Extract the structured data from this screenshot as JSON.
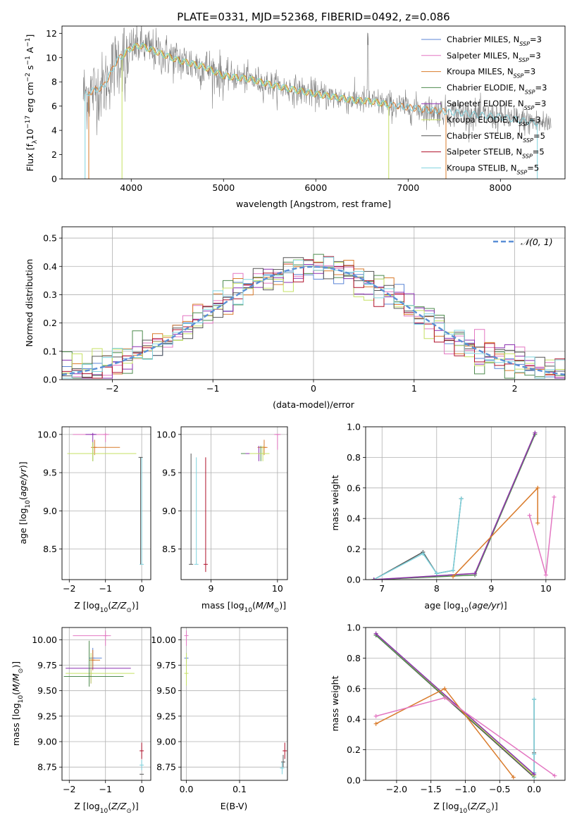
{
  "title": "PLATE=0331, MJD=52368, FIBERID=0492, z=0.086",
  "colors": {
    "chabrier_miles": "#5b85d6",
    "salpeter_miles": "#e377c2",
    "kroupa_miles": "#d97b2b",
    "chabrier_elodie": "#4e8b4e",
    "salpeter_elodie": "#8b2fb0",
    "kroupa_elodie": "#c5e063",
    "chabrier_stelib": "#555555",
    "salpeter_stelib": "#b0102a",
    "kroupa_stelib": "#7fd3de",
    "data": "#808080",
    "normal_curve": "#5b8fd6",
    "grid": "#b0b0b0"
  },
  "chart_data": [
    {
      "id": "spectrum",
      "type": "line",
      "title": "PLATE=0331, MJD=52368, FIBERID=0492, z=0.086",
      "xlabel": "wavelength [Angstrom, rest frame]",
      "ylabel": "Flux [f_λ 10^-17 erg cm^-2 s^-1 A^-1]",
      "xlim": [
        3250,
        8700
      ],
      "ylim": [
        0,
        12.6
      ],
      "xticks": [
        4000,
        5000,
        6000,
        7000,
        8000
      ],
      "yticks": [
        0,
        2,
        4,
        6,
        8,
        10,
        12
      ],
      "legend_position": "top-right",
      "legend": [
        {
          "label": "Chabrier MILES, N_SSP=3",
          "color": "chabrier_miles"
        },
        {
          "label": "Salpeter MILES, N_SSP=3",
          "color": "salpeter_miles"
        },
        {
          "label": "Kroupa MILES, N_SSP=3",
          "color": "kroupa_miles"
        },
        {
          "label": "Chabrier ELODIE, N_SSP=3",
          "color": "chabrier_elodie"
        },
        {
          "label": "Salpeter ELODIE, N_SSP=3",
          "color": "salpeter_elodie"
        },
        {
          "label": "Kroupa ELODIE, N_SSP=3",
          "color": "kroupa_elodie"
        },
        {
          "label": "Chabrier STELIB, N_SSP=5",
          "color": "chabrier_stelib"
        },
        {
          "label": "Salpeter STELIB, N_SSP=5",
          "color": "salpeter_stelib"
        },
        {
          "label": "Kroupa STELIB, N_SSP=5",
          "color": "kroupa_stelib"
        }
      ],
      "continuum": {
        "x": [
          3500,
          3700,
          3850,
          4000,
          4100,
          4300,
          4500,
          4800,
          5000,
          5300,
          5600,
          6000,
          6400,
          6600,
          6800,
          7200,
          7600,
          8000,
          8400
        ],
        "y": [
          7.0,
          7.6,
          9.8,
          10.8,
          11.0,
          10.4,
          9.8,
          9.2,
          8.5,
          8.2,
          7.6,
          7.0,
          6.5,
          6.4,
          6.1,
          5.7,
          5.4,
          5.1,
          4.6
        ]
      }
    },
    {
      "id": "residuals",
      "type": "histogram",
      "xlabel": "(data-model)/error",
      "ylabel": "Normed distribution",
      "xlim": [
        -2.5,
        2.5
      ],
      "ylim": [
        0,
        0.54
      ],
      "xticks": [
        -2,
        -1,
        0,
        1,
        2
      ],
      "yticks": [
        0.0,
        0.1,
        0.2,
        0.3,
        0.4,
        0.5
      ],
      "bin_width": 0.1,
      "legend_position": "top-right",
      "curve_label": "𝒩(0, 1)"
    },
    {
      "id": "age_vs_Z",
      "type": "scatter",
      "xlabel": "Z [log10(Z/Z⊙)]",
      "ylabel": "age  [log10(age/yr)]",
      "xlim": [
        -2.2,
        0.25
      ],
      "ylim": [
        8.1,
        10.1
      ],
      "xticks": [
        -2,
        -1,
        0
      ],
      "yticks": [
        8.5,
        9.0,
        9.5,
        10.0
      ]
    },
    {
      "id": "age_vs_mass",
      "type": "scatter",
      "xlabel": "mass [log10(M/M⊙)]",
      "ylabel": "",
      "xlim": [
        8.55,
        10.15
      ],
      "ylim": [
        8.1,
        10.1
      ],
      "xticks": [
        9,
        10
      ],
      "yticks": [
        8.5,
        9.0,
        9.5,
        10.0
      ]
    },
    {
      "id": "weight_vs_age",
      "type": "line",
      "xlabel": "age  [log10(age/yr)]",
      "ylabel": "mass weight",
      "xlim": [
        6.7,
        10.35
      ],
      "ylim": [
        0,
        1.0
      ],
      "xticks": [
        7,
        8,
        9,
        10
      ],
      "yticks": [
        0.0,
        0.2,
        0.4,
        0.6,
        0.8,
        1.0
      ],
      "series": [
        {
          "color": "chabrier_stelib",
          "x": [
            6.85,
            7.75,
            8.0,
            8.3,
            8.45
          ],
          "y": [
            0.0,
            0.18,
            0.04,
            0.06,
            0.53
          ]
        },
        {
          "color": "kroupa_stelib",
          "x": [
            6.85,
            7.75,
            8.0,
            8.3,
            8.45
          ],
          "y": [
            0.0,
            0.17,
            0.04,
            0.06,
            0.53
          ]
        },
        {
          "color": "chabrier_elodie",
          "x": [
            6.85,
            8.7,
            9.8
          ],
          "y": [
            0.0,
            0.03,
            0.95
          ]
        },
        {
          "color": "kroupa_elodie",
          "x": [
            6.85,
            8.7,
            9.8
          ],
          "y": [
            0.0,
            0.04,
            0.96
          ]
        },
        {
          "color": "salpeter_elodie",
          "x": [
            6.85,
            8.7,
            9.8
          ],
          "y": [
            0.0,
            0.04,
            0.96
          ]
        },
        {
          "color": "kroupa_miles",
          "x": [
            8.3,
            9.85,
            9.85
          ],
          "y": [
            0.02,
            0.6,
            0.37
          ]
        },
        {
          "color": "salpeter_miles",
          "x": [
            9.7,
            10.0,
            10.15
          ],
          "y": [
            0.42,
            0.03,
            0.54
          ]
        }
      ]
    },
    {
      "id": "mass_vs_Z",
      "type": "scatter",
      "xlabel": "Z [log10(Z/Z⊙)]",
      "ylabel": "mass [log10(M/M⊙)]",
      "xlim": [
        -2.2,
        0.25
      ],
      "ylim": [
        8.62,
        10.12
      ],
      "xticks": [
        -2,
        -1,
        0
      ],
      "yticks": [
        8.75,
        9.0,
        9.25,
        9.5,
        9.75,
        10.0
      ]
    },
    {
      "id": "mass_vs_ebv",
      "type": "scatter",
      "xlabel": "E(B-V)",
      "ylabel": "",
      "xlim": [
        -0.01,
        0.19
      ],
      "ylim": [
        8.62,
        10.12
      ],
      "xticks": [
        0.0,
        0.1
      ],
      "yticks": [
        8.75,
        9.0,
        9.25,
        9.5,
        9.75,
        10.0
      ]
    },
    {
      "id": "weight_vs_Z",
      "type": "line",
      "xlabel": "Z [log10(Z/Z⊙)]",
      "ylabel": "mass weight",
      "xlim": [
        -2.45,
        0.45
      ],
      "ylim": [
        0,
        1.0
      ],
      "xticks": [
        -2.0,
        -1.5,
        -1.0,
        -0.5,
        0.0
      ],
      "yticks": [
        0.0,
        0.2,
        0.4,
        0.6,
        0.8,
        1.0
      ],
      "series": [
        {
          "color": "chabrier_stelib",
          "x": [
            -2.3,
            0.0,
            0.0,
            0.0,
            0.0
          ],
          "y": [
            0.95,
            0.02,
            0.18,
            0.05,
            0.53
          ]
        },
        {
          "color": "kroupa_stelib",
          "x": [
            0.0,
            0.0,
            0.0,
            0.0
          ],
          "y": [
            0.02,
            0.17,
            0.05,
            0.53
          ]
        },
        {
          "color": "chabrier_elodie",
          "x": [
            -2.3,
            0.0
          ],
          "y": [
            0.95,
            0.03
          ]
        },
        {
          "color": "kroupa_elodie",
          "x": [
            -2.3,
            0.0
          ],
          "y": [
            0.96,
            0.03
          ]
        },
        {
          "color": "salpeter_elodie",
          "x": [
            -2.3,
            0.0
          ],
          "y": [
            0.96,
            0.04
          ]
        },
        {
          "color": "kroupa_miles",
          "x": [
            -2.3,
            -1.3,
            -0.3
          ],
          "y": [
            0.37,
            0.6,
            0.02
          ]
        },
        {
          "color": "salpeter_miles",
          "x": [
            -2.3,
            -1.3,
            0.3
          ],
          "y": [
            0.42,
            0.54,
            0.03
          ]
        }
      ]
    }
  ]
}
